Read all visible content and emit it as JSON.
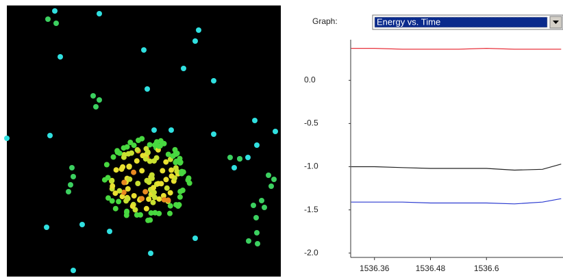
{
  "graph_label": "Graph:",
  "graph_selector": "Energy vs. Time",
  "chart_data": {
    "type": "line",
    "x": [
      1536.31,
      1536.36,
      1536.42,
      1536.48,
      1536.54,
      1536.6,
      1536.66,
      1536.72,
      1536.76
    ],
    "series": [
      {
        "color": "#e8303a",
        "values": [
          0.37,
          0.37,
          0.36,
          0.36,
          0.36,
          0.37,
          0.36,
          0.36,
          0.36
        ]
      },
      {
        "color": "#222222",
        "values": [
          -1.0,
          -1.0,
          -1.01,
          -1.02,
          -1.02,
          -1.02,
          -1.04,
          -1.03,
          -0.97
        ]
      },
      {
        "color": "#2a3ad0",
        "values": [
          -1.41,
          -1.41,
          -1.41,
          -1.42,
          -1.42,
          -1.42,
          -1.43,
          -1.41,
          -1.37
        ]
      }
    ],
    "xlim": [
      1536.309,
      1536.764
    ],
    "ylim": [
      -2.05,
      0.47
    ],
    "xticks": [
      1536.36,
      1536.48,
      1536.6
    ],
    "yticks": [
      {
        "value": 0,
        "label": "0.0"
      },
      -0.5,
      {
        "value": -1,
        "label": "-1.0"
      },
      -1.5,
      {
        "value": -2,
        "label": "-2.0"
      }
    ],
    "grid": false
  }
}
